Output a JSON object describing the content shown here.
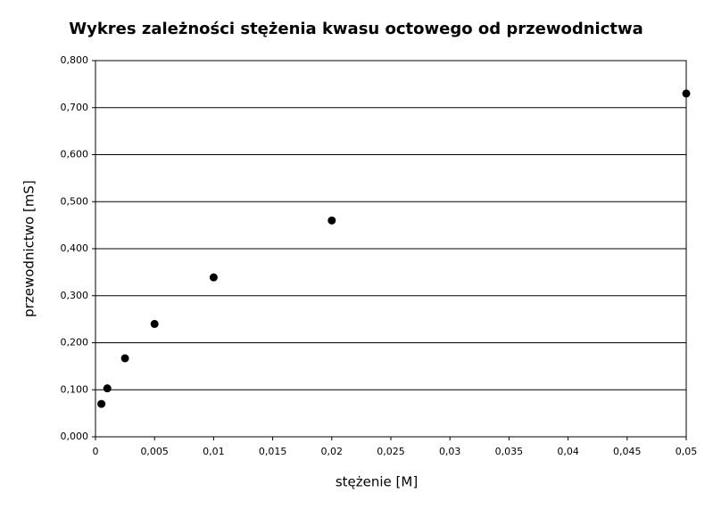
{
  "chart_data": {
    "type": "scatter",
    "title": "Wykres zależności stężenia kwasu octowego od przewodnictwa",
    "x_label": "stężenie [M]",
    "y_label": "przewodnictwo [mS]",
    "x": [
      0.0005,
      0.001,
      0.0025,
      0.005,
      0.01,
      0.02,
      0.05
    ],
    "series": [
      {
        "name": "przewodnictwo",
        "color": "#000000",
        "values": [
          0.07,
          0.103,
          0.167,
          0.24,
          0.339,
          0.46,
          0.73
        ]
      }
    ],
    "xlim": [
      0,
      0.05
    ],
    "xticks": [
      0,
      {
        "value": 0.005,
        "label": "0,005"
      },
      {
        "value": 0.01,
        "label": "0,01"
      },
      {
        "value": 0.015,
        "label": "0,015"
      },
      {
        "value": 0.02,
        "label": "0,02"
      },
      {
        "value": 0.025,
        "label": "0,025"
      },
      {
        "value": 0.03,
        "label": "0,03"
      },
      {
        "value": 0.035,
        "label": "0,035"
      },
      {
        "value": 0.04,
        "label": "0,04"
      },
      {
        "value": 0.045,
        "label": "0,045"
      },
      {
        "value": 0.05,
        "label": "0,05"
      }
    ],
    "ylim": [
      0,
      0.8
    ],
    "yticks": [
      {
        "value": 0,
        "label": "0,000"
      },
      {
        "value": 0.1,
        "label": "0,100"
      },
      {
        "value": 0.2,
        "label": "0,200"
      },
      {
        "value": 0.3,
        "label": "0,300"
      },
      {
        "value": 0.4,
        "label": "0,400"
      },
      {
        "value": 0.5,
        "label": "0,500"
      },
      {
        "value": 0.6,
        "label": "0,600"
      },
      {
        "value": 0.7,
        "label": "0,700"
      },
      {
        "value": 0.8,
        "label": "0,800"
      }
    ],
    "grid": true
  }
}
